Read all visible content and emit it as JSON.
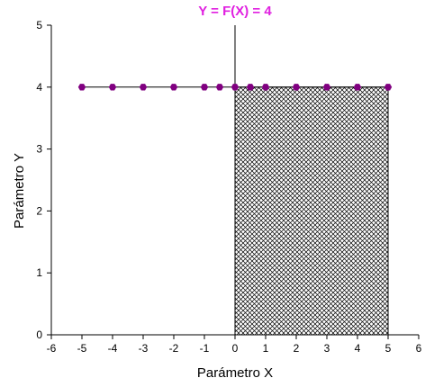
{
  "chart_data": {
    "type": "line",
    "title": "Y = F(X) = 4",
    "xlabel": "Parámetro X",
    "ylabel": "Parámetro Y",
    "xlim": [
      -6,
      6
    ],
    "ylim": [
      0,
      5
    ],
    "xticks": [
      -6,
      -5,
      -4,
      -3,
      -2,
      -1,
      0,
      1,
      2,
      3,
      4,
      5,
      6
    ],
    "yticks": [
      0,
      1,
      2,
      3,
      4,
      5
    ],
    "grid": false,
    "series": [
      {
        "x": [
          -5,
          -4,
          -3,
          -2,
          -1,
          -0.5,
          0,
          0.5,
          1,
          2,
          3,
          4,
          5
        ],
        "y": [
          4,
          4,
          4,
          4,
          4,
          4,
          4,
          4,
          4,
          4,
          4,
          4,
          4
        ]
      }
    ],
    "shaded_region": {
      "x": [
        0,
        5
      ],
      "y": [
        0,
        4
      ],
      "fill": "crosshatch"
    },
    "colors": {
      "title": "#e020e0",
      "marker": "#800080",
      "line": "#000000",
      "hatch": "#000000"
    }
  }
}
